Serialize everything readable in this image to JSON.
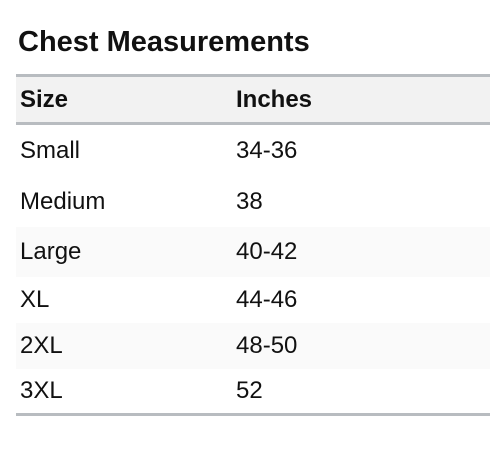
{
  "title": "Chest Measurements",
  "table": {
    "headers": [
      "Size",
      "Inches"
    ],
    "rows": [
      [
        "Small",
        "34-36"
      ],
      [
        "Medium",
        "38"
      ],
      [
        "Large",
        "40-42"
      ],
      [
        "XL",
        "44-46"
      ],
      [
        "2XL",
        "48-50"
      ],
      [
        "3XL",
        "52"
      ]
    ]
  }
}
